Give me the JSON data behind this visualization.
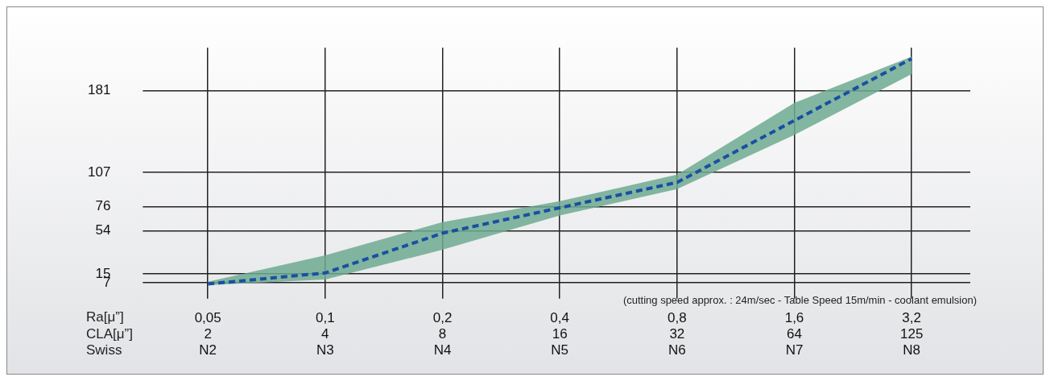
{
  "chart_data": {
    "type": "line",
    "categories": [
      "0,05\n2\nN2",
      "0,1\n4\nN3",
      "0,2\n8\nN4",
      "0,4\n16\nN5",
      "0,8\n32\nN6",
      "1,6\n64\nN7",
      "3,2\n125\nN8"
    ],
    "xlabel": "Ra[μ”]\nCLA[μ”]\nSwiss",
    "series": [
      {
        "color": "#1a4fa3",
        "line_style": "dashed",
        "values": [
          6,
          16,
          52,
          75,
          98,
          154,
          210
        ],
        "lower": [
          5,
          10,
          37,
          68,
          92,
          141,
          196
        ],
        "upper": [
          8,
          32,
          62,
          81,
          105,
          170,
          212
        ]
      }
    ],
    "ylim": [
      0,
      220
    ],
    "yticks": [
      7,
      15,
      54,
      76,
      107,
      181
    ],
    "grid": true,
    "marker": "none",
    "annotations": [
      "(cutting speed approx. : 24m/sec - Table Speed 15m/min - coolant emulsion)"
    ]
  }
}
